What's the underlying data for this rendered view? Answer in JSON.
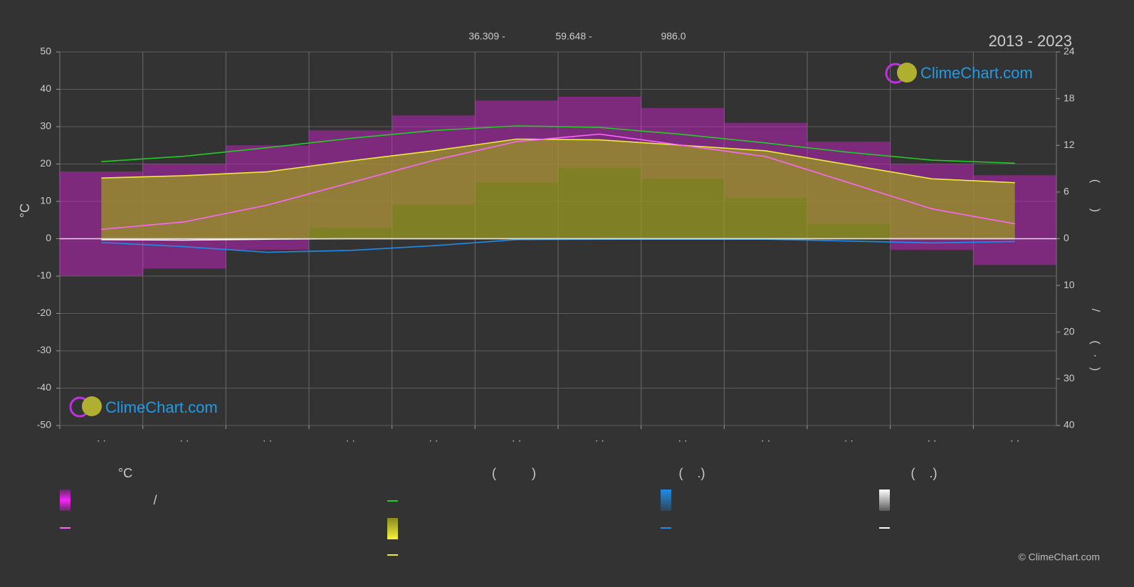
{
  "chart_data": {
    "type": "line",
    "title": "2013 - 2023",
    "header_labels": [
      "36.309 -",
      "59.648 -",
      "986.0"
    ],
    "y_label": "°C",
    "right_label_parts": [
      "(        )",
      "/",
      "(   ·   )"
    ],
    "watermark": "ClimeChart.com",
    "copyright": "© ClimeChart.com",
    "categories": [
      "· ·",
      "· ·",
      "· ·",
      "· ·",
      "· ·",
      "· ·",
      "· ·",
      "· ·",
      "· ·",
      "· ·",
      "· ·",
      "· ·"
    ],
    "ylim": [
      -50,
      50
    ],
    "yticks": [
      -50,
      -40,
      -30,
      -20,
      -10,
      0,
      10,
      20,
      30,
      40,
      50
    ],
    "y2lim": [
      0,
      24
    ],
    "y2ticks": [
      0,
      6,
      12,
      18,
      24
    ],
    "y3lim": [
      0,
      40
    ],
    "y3ticks": [
      10,
      20,
      30,
      40
    ],
    "grid": true,
    "series": [
      {
        "style": "band",
        "axis": "y",
        "color": "#d81ed8",
        "low": [
          -10,
          -8,
          -3,
          3,
          9,
          15,
          19,
          16,
          11,
          4,
          -3,
          -7
        ],
        "high": [
          18,
          20,
          25,
          29,
          33,
          37,
          38,
          35,
          31,
          26,
          20,
          17
        ]
      },
      {
        "style": "area",
        "axis": "y2",
        "color": "#9a9a22",
        "values": [
          7.8,
          8.1,
          8.6,
          10.0,
          11.3,
          12.8,
          12.7,
          12.0,
          11.3,
          9.5,
          7.7,
          7.2
        ]
      },
      {
        "style": "line",
        "axis": "y2",
        "color": "#22cc22",
        "values": [
          9.9,
          10.6,
          11.7,
          12.9,
          13.9,
          14.5,
          14.3,
          13.4,
          12.3,
          11.1,
          10.1,
          9.7
        ]
      },
      {
        "style": "line",
        "axis": "y2",
        "color": "#ecec3c",
        "values": [
          7.8,
          8.1,
          8.6,
          10.0,
          11.3,
          12.8,
          12.7,
          12.0,
          11.3,
          9.5,
          7.7,
          7.2
        ]
      },
      {
        "style": "line",
        "axis": "y",
        "color": "#ff66ff",
        "values": [
          2.5,
          4.5,
          9,
          15,
          21,
          26,
          28,
          25,
          22,
          15,
          8,
          4
        ]
      },
      {
        "style": "line",
        "axis": "y3",
        "color": "#1e8ce8",
        "values": [
          0.8,
          1.7,
          2.9,
          2.5,
          1.5,
          0.2,
          0.1,
          0.1,
          0.1,
          0.5,
          0.9,
          0.6
        ]
      },
      {
        "style": "line",
        "axis": "y3",
        "color": "#ffffff",
        "values": [
          0.2,
          0.3,
          0.1,
          0,
          0,
          0,
          0,
          0,
          0,
          0,
          0,
          0
        ]
      }
    ],
    "legend": {
      "headers": [
        "°C",
        "(          )",
        "(    .)",
        "(    .)"
      ],
      "slash": "/"
    }
  }
}
